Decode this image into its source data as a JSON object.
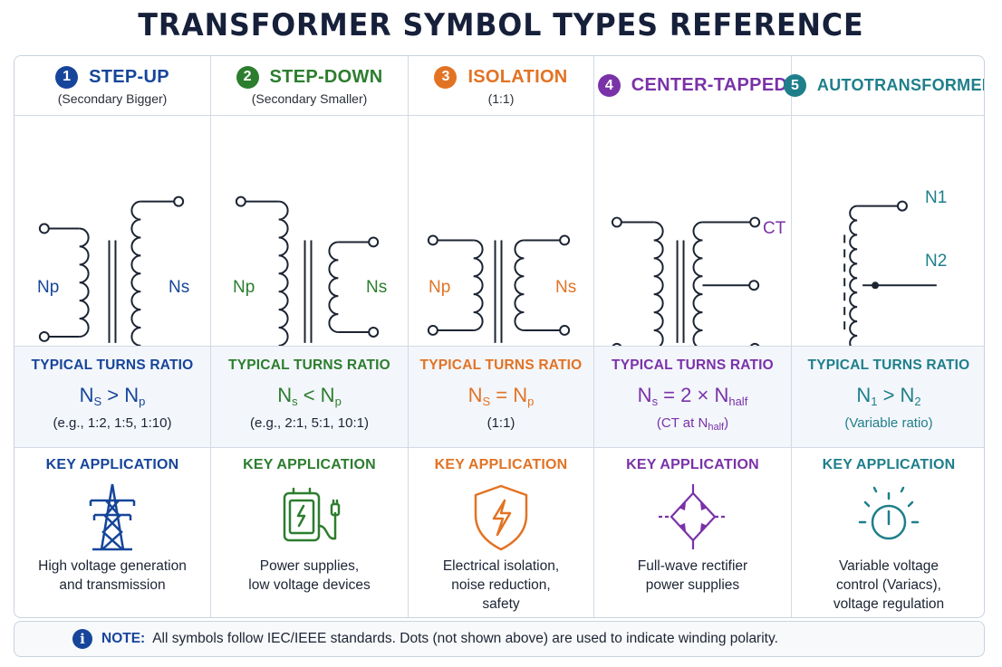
{
  "title": "TRANSFORMER SYMBOL TYPES REFERENCE",
  "colors": {
    "step_up": "#16459a",
    "step_down": "#2c7d2e",
    "isolation": "#e27324",
    "center_tapped": "#7a32a8",
    "auto": "#1e7f8b"
  },
  "columns": [
    {
      "num": "1",
      "title": "STEP-UP",
      "subtitle": "(Secondary Bigger)",
      "labels": {
        "primary": "Np",
        "secondary": "Ns"
      },
      "ratio_label": "TYPICAL TURNS RATIO",
      "formula": {
        "a": "N",
        "a_sub": "S",
        "op": " > ",
        "b": "N",
        "b_sub": "p"
      },
      "ratio_example": "(e.g., 1:2, 1:5, 1:10)",
      "app_label": "KEY APPLICATION",
      "app_icon": "transmission-tower-icon",
      "app_lines": [
        "High voltage generation",
        "and transmission"
      ]
    },
    {
      "num": "2",
      "title": "STEP-DOWN",
      "subtitle": "(Secondary Smaller)",
      "labels": {
        "primary": "Np",
        "secondary": "Ns"
      },
      "ratio_label": "TYPICAL TURNS RATIO",
      "formula": {
        "a": "N",
        "a_sub": "s",
        "op": " < ",
        "b": "N",
        "b_sub": "p"
      },
      "ratio_example": "(e.g., 2:1, 5:1, 10:1)",
      "app_label": "KEY APPLICATION",
      "app_icon": "power-adapter-icon",
      "app_lines": [
        "Power supplies,",
        "low voltage devices"
      ]
    },
    {
      "num": "3",
      "title": "ISOLATION",
      "subtitle": "(1:1)",
      "labels": {
        "primary": "Np",
        "secondary": "Ns"
      },
      "ratio_label": "TYPICAL TURNS RATIO",
      "formula": {
        "a": "N",
        "a_sub": "S",
        "op": " = ",
        "b": "N",
        "b_sub": "p"
      },
      "ratio_example": "(1:1)",
      "app_label": "KEY APPLICATION",
      "app_icon": "shield-bolt-icon",
      "app_lines": [
        "Electrical isolation,",
        "noise reduction,",
        "safety"
      ]
    },
    {
      "num": "4",
      "title": "CENTER-TAPPED",
      "subtitle": "",
      "labels": {
        "tap": "CT"
      },
      "ratio_label": "TYPICAL TURNS RATIO",
      "formula": {
        "a": "N",
        "a_sub": "s",
        "op": " = 2 × ",
        "b": "N",
        "b_sub": "half"
      },
      "ratio_example": {
        "pre": "(CT at N",
        "sub": "half",
        "post": ")"
      },
      "app_label": "KEY APPLICATION",
      "app_icon": "bridge-rectifier-icon",
      "app_lines": [
        "Full-wave rectifier",
        "power supplies"
      ]
    },
    {
      "num": "5",
      "title": "AUTOTRANSFORMER",
      "subtitle": "",
      "labels": {
        "n1": "N1",
        "n2": "N2"
      },
      "ratio_label": "TYPICAL TURNS RATIO",
      "formula": {
        "a": "N",
        "a_sub": "1",
        "op": " > ",
        "b": "N",
        "b_sub": "2"
      },
      "ratio_example": "(Variable ratio)",
      "app_label": "KEY APPLICATION",
      "app_icon": "dial-knob-icon",
      "app_lines": [
        "Variable voltage",
        "control (Variacs),",
        "voltage regulation"
      ]
    }
  ],
  "note": {
    "label": "NOTE:",
    "text": "All symbols follow IEC/IEEE standards. Dots (not shown above) are used to indicate winding polarity."
  }
}
